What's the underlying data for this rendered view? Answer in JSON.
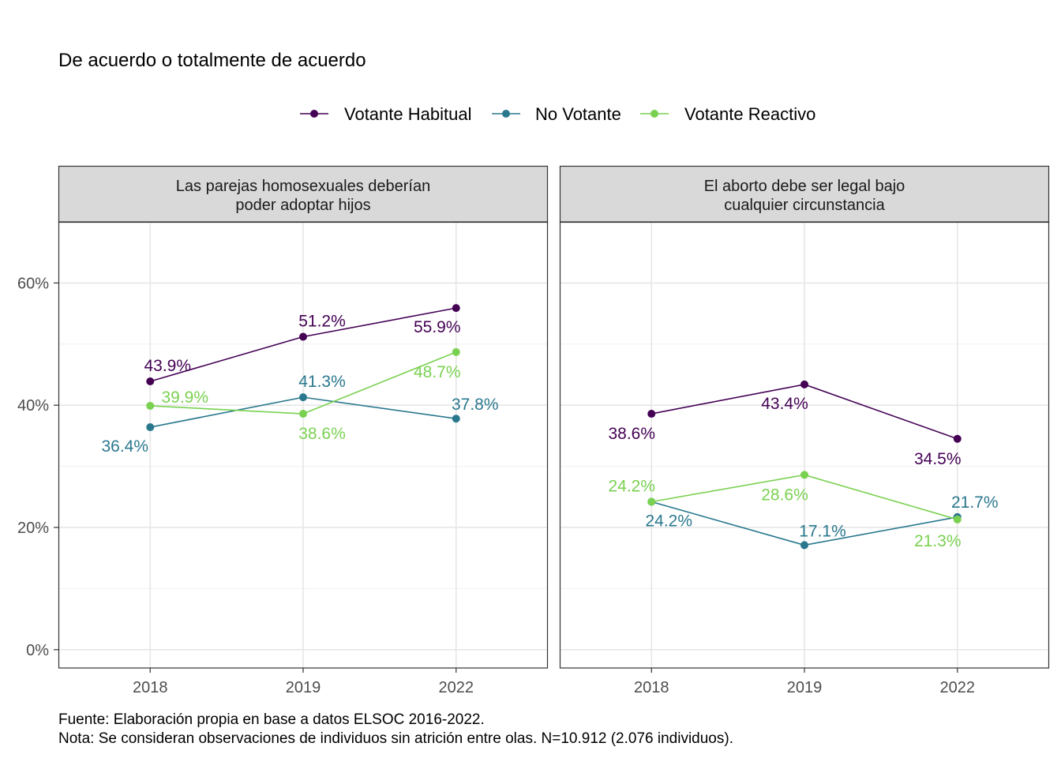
{
  "chart_data": {
    "type": "line",
    "title": "De acuerdo o totalmente de acuerdo",
    "legend": {
      "placement": "top",
      "entries": [
        "Votante Habitual",
        "No Votante",
        "Votante Reactivo"
      ]
    },
    "x_categories": [
      "2018",
      "2019",
      "2022"
    ],
    "y_ticks": [
      "0%",
      "20%",
      "40%",
      "60%"
    ],
    "ylim": [
      -3,
      70
    ],
    "grid": true,
    "colors": {
      "Votante Habitual": "#440154",
      "No Votante": "#2a788e",
      "Votante Reactivo": "#7ad151"
    },
    "panels": [
      {
        "title": "Las parejas homosexuales deberían\npoder adoptar hijos",
        "series": [
          {
            "name": "Votante Habitual",
            "values": [
              43.9,
              51.2,
              55.9
            ],
            "labels": [
              "43.9%",
              "51.2%",
              "55.9%"
            ]
          },
          {
            "name": "No Votante",
            "values": [
              36.4,
              41.3,
              37.8
            ],
            "labels": [
              "36.4%",
              "41.3%",
              "37.8%"
            ]
          },
          {
            "name": "Votante Reactivo",
            "values": [
              39.9,
              38.6,
              48.7
            ],
            "labels": [
              "39.9%",
              "38.6%",
              "48.7%"
            ]
          }
        ]
      },
      {
        "title": "El aborto debe ser legal bajo\ncualquier circunstancia",
        "series": [
          {
            "name": "Votante Habitual",
            "values": [
              38.6,
              43.4,
              34.5
            ],
            "labels": [
              "38.6%",
              "43.4%",
              "34.5%"
            ]
          },
          {
            "name": "No Votante",
            "values": [
              24.2,
              17.1,
              21.7
            ],
            "labels": [
              "24.2%",
              "17.1%",
              "21.7%"
            ]
          },
          {
            "name": "Votante Reactivo",
            "values": [
              24.2,
              28.6,
              21.3
            ],
            "labels": [
              "24.2%",
              "28.6%",
              "21.3%"
            ]
          }
        ]
      }
    ],
    "caption": [
      "Fuente: Elaboración propia en base a datos ELSOC 2016-2022.",
      "Nota: Se consideran observaciones de individuos sin atrición entre olas. N=10.912 (2.076 individuos)."
    ]
  }
}
